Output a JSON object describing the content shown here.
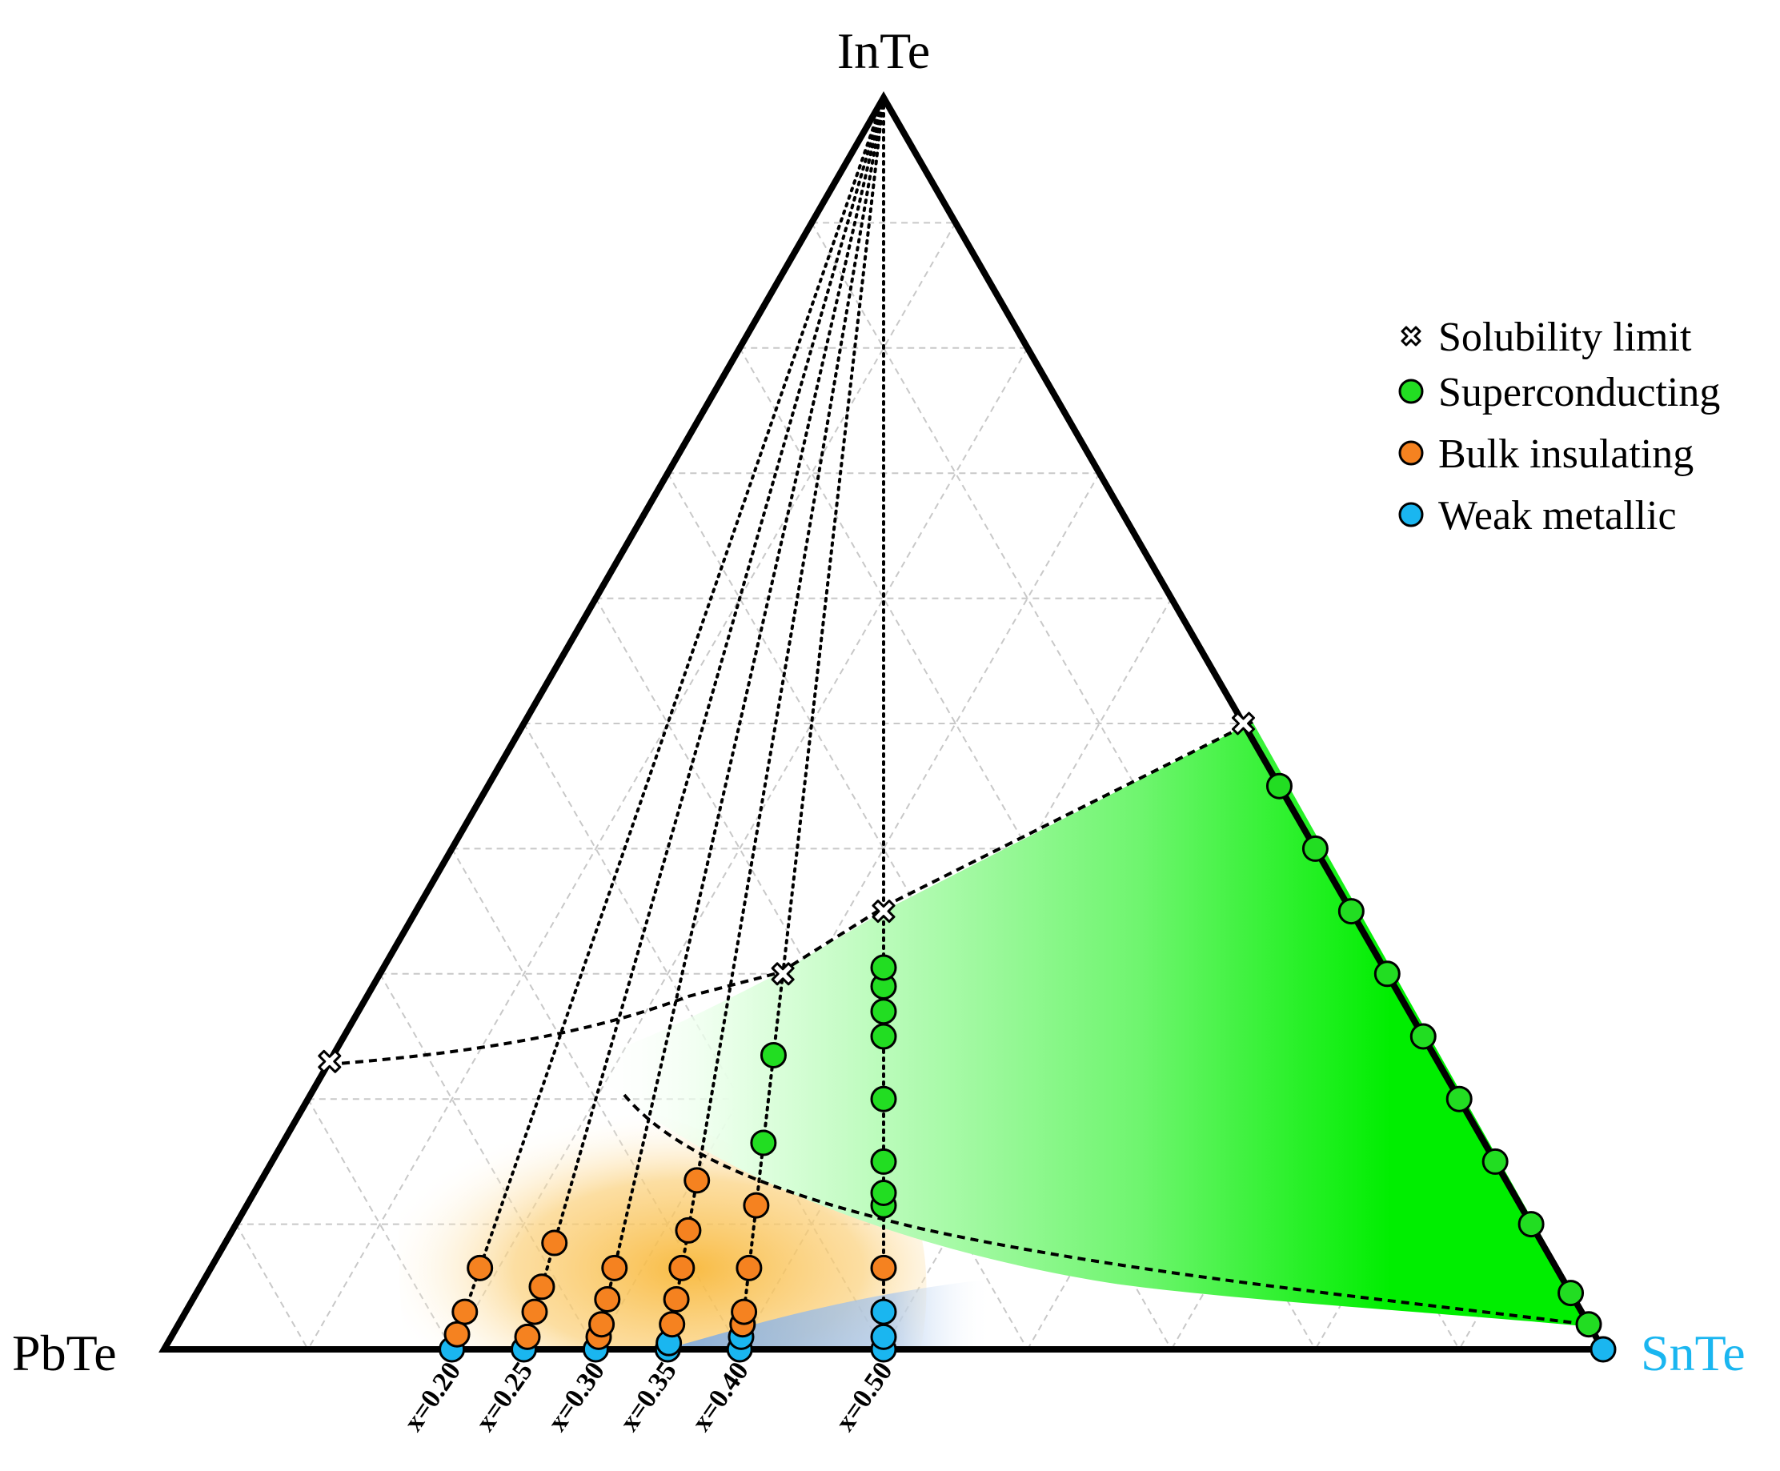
{
  "chart_data": {
    "type": "ternary-scatter",
    "vertices": [
      {
        "label": "PbTe",
        "color": "#000000"
      },
      {
        "label": "SnTe",
        "color": "#1ab6f0"
      },
      {
        "label": "InTe",
        "color": "#000000"
      }
    ],
    "grid": true,
    "grid_step": 0.1,
    "legend": {
      "position": "top-right",
      "items": [
        {
          "label": "Solubility limit",
          "marker": "cross",
          "color": "#ffffff"
        },
        {
          "label": "Superconducting",
          "marker": "circle",
          "color": "#22dd22"
        },
        {
          "label": "Bulk insulating",
          "marker": "circle",
          "color": "#f58220"
        },
        {
          "label": "Weak metallic",
          "marker": "circle",
          "color": "#1ab6f0"
        }
      ]
    },
    "composition_lines": [
      {
        "label": "x=0.20",
        "x": 0.2
      },
      {
        "label": "x=0.25",
        "x": 0.25
      },
      {
        "label": "x=0.30",
        "x": 0.3
      },
      {
        "label": "x=0.35",
        "x": 0.35
      },
      {
        "label": "x=0.40",
        "x": 0.4
      },
      {
        "label": "x=0.50",
        "x": 0.5
      }
    ],
    "points_note": "each point: x = SnTe/(SnTe+PbTe) line, delta = InTe fraction",
    "series": [
      {
        "kind": "weak_metallic",
        "color": "#1ab6f0",
        "points": [
          {
            "x": 0.2,
            "delta": 0.0
          },
          {
            "x": 0.25,
            "delta": 0.0
          },
          {
            "x": 0.3,
            "delta": 0.0
          },
          {
            "x": 0.35,
            "delta": 0.0
          },
          {
            "x": 0.35,
            "delta": 0.005
          },
          {
            "x": 0.4,
            "delta": 0.0
          },
          {
            "x": 0.4,
            "delta": 0.01
          },
          {
            "x": 0.5,
            "delta": 0.0
          },
          {
            "x": 0.5,
            "delta": 0.01
          },
          {
            "x": 0.5,
            "delta": 0.03
          },
          {
            "x": 1.0,
            "delta": 0.0
          }
        ]
      },
      {
        "kind": "bulk_insulating",
        "color": "#f58220",
        "points": [
          {
            "x": 0.2,
            "delta": 0.012
          },
          {
            "x": 0.2,
            "delta": 0.03
          },
          {
            "x": 0.2,
            "delta": 0.065
          },
          {
            "x": 0.25,
            "delta": 0.01
          },
          {
            "x": 0.25,
            "delta": 0.03
          },
          {
            "x": 0.25,
            "delta": 0.05
          },
          {
            "x": 0.25,
            "delta": 0.085
          },
          {
            "x": 0.3,
            "delta": 0.01
          },
          {
            "x": 0.3,
            "delta": 0.02
          },
          {
            "x": 0.3,
            "delta": 0.04
          },
          {
            "x": 0.3,
            "delta": 0.065
          },
          {
            "x": 0.35,
            "delta": 0.02
          },
          {
            "x": 0.35,
            "delta": 0.04
          },
          {
            "x": 0.35,
            "delta": 0.065
          },
          {
            "x": 0.35,
            "delta": 0.095
          },
          {
            "x": 0.35,
            "delta": 0.135
          },
          {
            "x": 0.4,
            "delta": 0.02
          },
          {
            "x": 0.4,
            "delta": 0.03
          },
          {
            "x": 0.4,
            "delta": 0.065
          },
          {
            "x": 0.4,
            "delta": 0.115
          },
          {
            "x": 0.5,
            "delta": 0.065
          }
        ]
      },
      {
        "kind": "superconducting",
        "color": "#22dd22",
        "points": [
          {
            "x": 0.4,
            "delta": 0.165
          },
          {
            "x": 0.4,
            "delta": 0.235
          },
          {
            "x": 0.5,
            "delta": 0.115
          },
          {
            "x": 0.5,
            "delta": 0.125
          },
          {
            "x": 0.5,
            "delta": 0.15
          },
          {
            "x": 0.5,
            "delta": 0.2
          },
          {
            "x": 0.5,
            "delta": 0.25
          },
          {
            "x": 0.5,
            "delta": 0.27
          },
          {
            "x": 0.5,
            "delta": 0.29
          },
          {
            "x": 0.5,
            "delta": 0.305
          },
          {
            "x": 1.0,
            "delta": 0.02
          },
          {
            "x": 1.0,
            "delta": 0.045
          },
          {
            "x": 1.0,
            "delta": 0.1
          },
          {
            "x": 1.0,
            "delta": 0.15
          },
          {
            "x": 1.0,
            "delta": 0.2
          },
          {
            "x": 1.0,
            "delta": 0.25
          },
          {
            "x": 1.0,
            "delta": 0.3
          },
          {
            "x": 1.0,
            "delta": 0.35
          },
          {
            "x": 1.0,
            "delta": 0.4
          },
          {
            "x": 1.0,
            "delta": 0.45
          }
        ]
      },
      {
        "kind": "solubility_limit",
        "color": "#ffffff",
        "points": [
          {
            "x": 0.0,
            "delta": 0.23
          },
          {
            "x": 0.4,
            "delta": 0.3
          },
          {
            "x": 0.5,
            "delta": 0.35
          },
          {
            "x": 1.0,
            "delta": 0.5
          }
        ]
      }
    ]
  }
}
